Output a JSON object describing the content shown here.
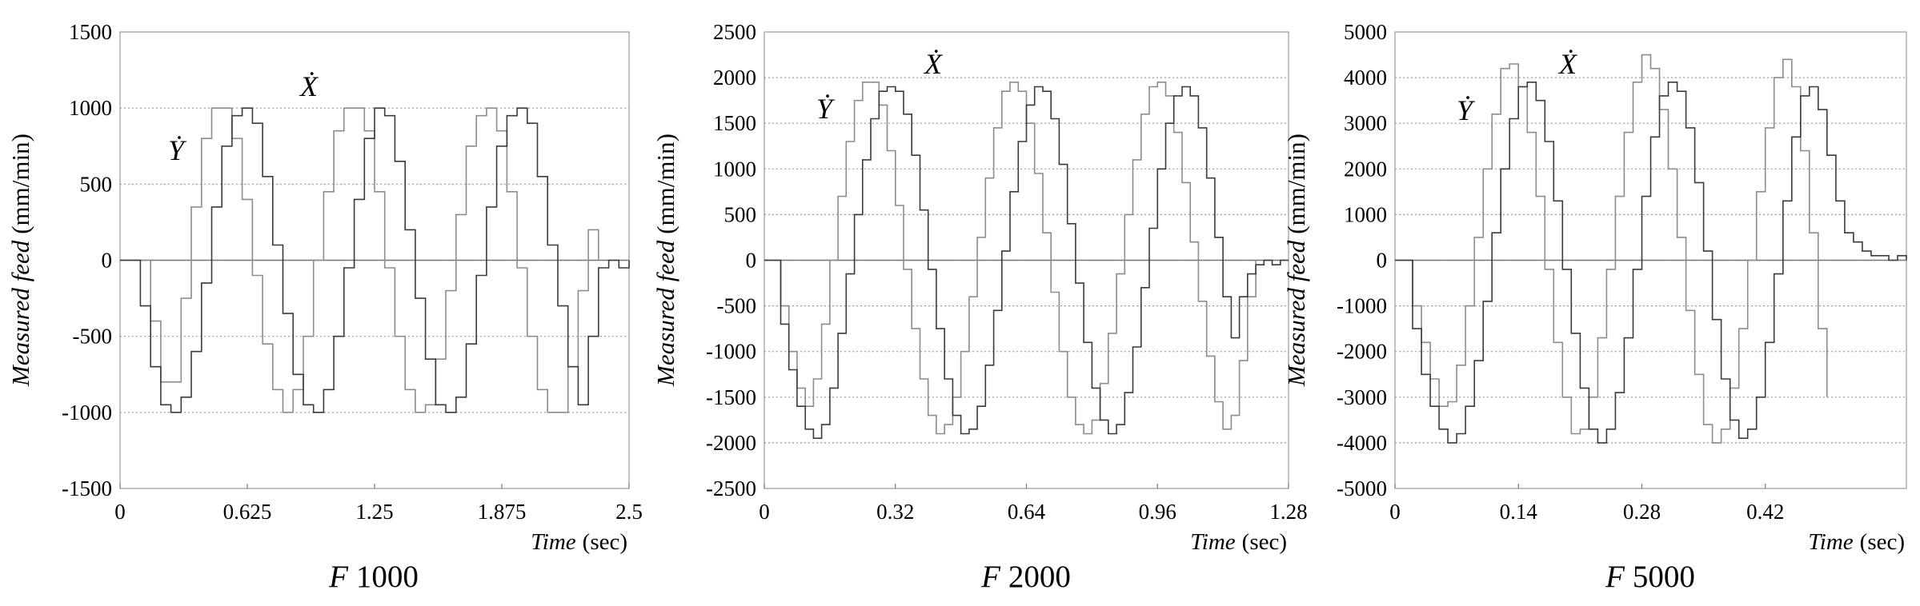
{
  "chart_data": [
    {
      "type": "line",
      "caption_prefix": "F",
      "caption_value": "1000",
      "ylabel_italic": "Measured feed",
      "ylabel_unit": "(mm/min)",
      "xlabel_italic": "Time",
      "xlabel_unit": "(sec)",
      "xlim": [
        0,
        2.5
      ],
      "ylim": [
        -1500,
        1500
      ],
      "xticks": [
        0,
        0.625,
        1.25,
        1.875,
        2.5
      ],
      "xtick_labels": [
        "0",
        "0.625",
        "1.25",
        "1.875",
        "2.5"
      ],
      "yticks": [
        -1500,
        -1000,
        -500,
        0,
        500,
        1000,
        1500
      ],
      "ytick_labels": [
        "-1500",
        "-1000",
        "-500",
        "0",
        "500",
        "1000",
        "1500"
      ],
      "grid": "horizontal dotted",
      "series": [
        {
          "name": "Ẏ",
          "color": "#8c8c8c",
          "x": [
            0.0,
            0.1,
            0.15,
            0.2,
            0.25,
            0.3,
            0.35,
            0.4,
            0.45,
            0.5,
            0.55,
            0.6,
            0.65,
            0.7,
            0.75,
            0.8,
            0.85,
            0.9,
            0.95,
            1.0,
            1.05,
            1.1,
            1.15,
            1.2,
            1.25,
            1.3,
            1.35,
            1.4,
            1.45,
            1.5,
            1.55,
            1.6,
            1.65,
            1.7,
            1.75,
            1.8,
            1.85,
            1.9,
            1.95,
            2.0,
            2.05,
            2.1,
            2.15,
            2.2,
            2.25,
            2.3,
            2.35
          ],
          "y": [
            0,
            0,
            -400,
            -800,
            -800,
            -250,
            350,
            800,
            1000,
            1000,
            800,
            400,
            -100,
            -550,
            -850,
            -1000,
            -850,
            -500,
            0,
            450,
            850,
            1000,
            1000,
            850,
            450,
            -50,
            -500,
            -850,
            -1000,
            -950,
            -650,
            -200,
            300,
            750,
            950,
            1000,
            850,
            450,
            -50,
            -500,
            -850,
            -1000,
            -1000,
            -700,
            -200,
            200,
            0
          ]
        },
        {
          "name": "Ẋ",
          "color": "#3a3a3a",
          "x": [
            0.0,
            0.1,
            0.15,
            0.2,
            0.25,
            0.3,
            0.35,
            0.4,
            0.45,
            0.5,
            0.55,
            0.6,
            0.65,
            0.7,
            0.75,
            0.8,
            0.85,
            0.9,
            0.95,
            1.0,
            1.05,
            1.1,
            1.15,
            1.2,
            1.25,
            1.3,
            1.35,
            1.4,
            1.45,
            1.5,
            1.55,
            1.6,
            1.65,
            1.7,
            1.75,
            1.8,
            1.85,
            1.9,
            1.95,
            2.0,
            2.05,
            2.1,
            2.15,
            2.2,
            2.25,
            2.3,
            2.35,
            2.4,
            2.45,
            2.5
          ],
          "y": [
            0,
            -300,
            -700,
            -950,
            -1000,
            -900,
            -600,
            -150,
            350,
            750,
            950,
            1000,
            900,
            550,
            100,
            -350,
            -750,
            -950,
            -1000,
            -850,
            -500,
            -50,
            400,
            800,
            1000,
            950,
            650,
            200,
            -250,
            -650,
            -950,
            -1000,
            -900,
            -550,
            -100,
            350,
            750,
            950,
            1000,
            900,
            550,
            100,
            -300,
            -700,
            -950,
            -500,
            -50,
            0,
            -50,
            0
          ]
        }
      ],
      "annotations": [
        {
          "text": "Ẏ",
          "series": 0
        },
        {
          "text": "Ẋ",
          "series": 1
        }
      ]
    },
    {
      "type": "line",
      "caption_prefix": "F",
      "caption_value": "2000",
      "ylabel_italic": "Measured feed",
      "ylabel_unit": "(mm/min)",
      "xlabel_italic": "Time",
      "xlabel_unit": "(sec)",
      "xlim": [
        0,
        1.28
      ],
      "ylim": [
        -2500,
        2500
      ],
      "xticks": [
        0,
        0.32,
        0.64,
        0.96,
        1.28
      ],
      "xtick_labels": [
        "0",
        "0.32",
        "0.64",
        "0.96",
        "1.28"
      ],
      "yticks": [
        -2500,
        -2000,
        -1500,
        -1000,
        -500,
        0,
        500,
        1000,
        1500,
        2000,
        2500
      ],
      "ytick_labels": [
        "-2500",
        "-2000",
        "-1500",
        "-1000",
        "-500",
        "0",
        "500",
        "1000",
        "1500",
        "2000",
        "2500"
      ],
      "grid": "horizontal dotted",
      "series": [
        {
          "name": "Ẏ",
          "color": "#8c8c8c",
          "x": [
            0.0,
            0.04,
            0.06,
            0.08,
            0.1,
            0.12,
            0.14,
            0.16,
            0.18,
            0.2,
            0.22,
            0.24,
            0.26,
            0.28,
            0.3,
            0.32,
            0.34,
            0.36,
            0.38,
            0.4,
            0.42,
            0.44,
            0.46,
            0.48,
            0.5,
            0.52,
            0.54,
            0.56,
            0.58,
            0.6,
            0.62,
            0.64,
            0.66,
            0.68,
            0.7,
            0.72,
            0.74,
            0.76,
            0.78,
            0.8,
            0.82,
            0.84,
            0.86,
            0.88,
            0.9,
            0.92,
            0.94,
            0.96,
            0.98,
            1.0,
            1.02,
            1.04,
            1.06,
            1.08,
            1.1,
            1.12,
            1.14,
            1.16,
            1.18,
            1.2
          ],
          "y": [
            0,
            -500,
            -1000,
            -1400,
            -1600,
            -1300,
            -700,
            0,
            700,
            1300,
            1750,
            1950,
            1950,
            1700,
            1200,
            600,
            -100,
            -750,
            -1300,
            -1700,
            -1900,
            -1800,
            -1500,
            -1000,
            -400,
            250,
            900,
            1450,
            1850,
            1950,
            1850,
            1500,
            950,
            300,
            -350,
            -1000,
            -1500,
            -1800,
            -1900,
            -1750,
            -1350,
            -800,
            -150,
            500,
            1100,
            1600,
            1900,
            1950,
            1800,
            1400,
            850,
            200,
            -450,
            -1050,
            -1550,
            -1850,
            -1700,
            -1100,
            -400,
            0
          ]
        },
        {
          "name": "Ẋ",
          "color": "#3a3a3a",
          "x": [
            0.0,
            0.04,
            0.06,
            0.08,
            0.1,
            0.12,
            0.14,
            0.16,
            0.18,
            0.2,
            0.22,
            0.24,
            0.26,
            0.28,
            0.3,
            0.32,
            0.34,
            0.36,
            0.38,
            0.4,
            0.42,
            0.44,
            0.46,
            0.48,
            0.5,
            0.52,
            0.54,
            0.56,
            0.58,
            0.6,
            0.62,
            0.64,
            0.66,
            0.68,
            0.7,
            0.72,
            0.74,
            0.76,
            0.78,
            0.8,
            0.82,
            0.84,
            0.86,
            0.88,
            0.9,
            0.92,
            0.94,
            0.96,
            0.98,
            1.0,
            1.02,
            1.04,
            1.06,
            1.08,
            1.1,
            1.12,
            1.14,
            1.16,
            1.18,
            1.2,
            1.22,
            1.24,
            1.26,
            1.28
          ],
          "y": [
            0,
            -700,
            -1200,
            -1600,
            -1850,
            -1950,
            -1800,
            -1400,
            -800,
            -150,
            500,
            1100,
            1550,
            1850,
            1900,
            1850,
            1600,
            1150,
            550,
            -100,
            -750,
            -1300,
            -1700,
            -1900,
            -1850,
            -1600,
            -1150,
            -550,
            100,
            750,
            1300,
            1700,
            1900,
            1850,
            1550,
            1050,
            400,
            -250,
            -900,
            -1400,
            -1750,
            -1900,
            -1800,
            -1450,
            -950,
            -300,
            350,
            1000,
            1500,
            1800,
            1900,
            1800,
            1450,
            900,
            250,
            -400,
            -850,
            -400,
            -150,
            -50,
            0,
            -50,
            0,
            0
          ]
        }
      ],
      "annotations": [
        {
          "text": "Ẏ",
          "series": 0
        },
        {
          "text": "Ẋ",
          "series": 1
        }
      ]
    },
    {
      "type": "line",
      "caption_prefix": "F",
      "caption_value": "5000",
      "ylabel_italic": "Measured feed",
      "ylabel_unit": "(mm/min)",
      "xlabel_italic": "Time",
      "xlabel_unit": "(sec)",
      "xlim": [
        0,
        0.58
      ],
      "ylim": [
        -5000,
        5000
      ],
      "xticks": [
        0,
        0.14,
        0.28,
        0.42
      ],
      "xtick_labels": [
        "0",
        "0.14",
        "0.28",
        "0.42"
      ],
      "yticks": [
        -5000,
        -4000,
        -3000,
        -2000,
        -1000,
        0,
        1000,
        2000,
        3000,
        4000,
        5000
      ],
      "ytick_labels": [
        "-5000",
        "-4000",
        "-3000",
        "-2000",
        "-1000",
        "0",
        "1000",
        "2000",
        "3000",
        "4000",
        "5000"
      ],
      "grid": "horizontal dotted",
      "series": [
        {
          "name": "Ẏ",
          "color": "#8c8c8c",
          "x": [
            0.0,
            0.02,
            0.03,
            0.04,
            0.05,
            0.06,
            0.07,
            0.08,
            0.09,
            0.1,
            0.11,
            0.12,
            0.13,
            0.14,
            0.15,
            0.16,
            0.17,
            0.18,
            0.19,
            0.2,
            0.21,
            0.22,
            0.23,
            0.24,
            0.25,
            0.26,
            0.27,
            0.28,
            0.29,
            0.3,
            0.31,
            0.32,
            0.33,
            0.34,
            0.35,
            0.36,
            0.37,
            0.38,
            0.39,
            0.4,
            0.41,
            0.42,
            0.43,
            0.44,
            0.45,
            0.46,
            0.47,
            0.48,
            0.49
          ],
          "y": [
            0,
            -1000,
            -1800,
            -2600,
            -3200,
            -3100,
            -2300,
            -1000,
            500,
            2000,
            3200,
            4200,
            4300,
            3800,
            2800,
            1400,
            -200,
            -1800,
            -3000,
            -3800,
            -3700,
            -3000,
            -1700,
            -200,
            1400,
            2800,
            3900,
            4500,
            4200,
            3300,
            2000,
            500,
            -1100,
            -2500,
            -3600,
            -4000,
            -3700,
            -2800,
            -1500,
            0,
            1500,
            2900,
            4000,
            4400,
            3800,
            2400,
            600,
            -1500,
            -3000
          ]
        },
        {
          "name": "Ẋ",
          "color": "#3a3a3a",
          "x": [
            0.0,
            0.02,
            0.03,
            0.04,
            0.05,
            0.06,
            0.07,
            0.08,
            0.09,
            0.1,
            0.11,
            0.12,
            0.13,
            0.14,
            0.15,
            0.16,
            0.17,
            0.18,
            0.19,
            0.2,
            0.21,
            0.22,
            0.23,
            0.24,
            0.25,
            0.26,
            0.27,
            0.28,
            0.29,
            0.3,
            0.31,
            0.32,
            0.33,
            0.34,
            0.35,
            0.36,
            0.37,
            0.38,
            0.39,
            0.4,
            0.41,
            0.42,
            0.43,
            0.44,
            0.45,
            0.46,
            0.47,
            0.48,
            0.49,
            0.5,
            0.51,
            0.52,
            0.53,
            0.54,
            0.55,
            0.56,
            0.57,
            0.58
          ],
          "y": [
            0,
            -1500,
            -2500,
            -3200,
            -3700,
            -4000,
            -3800,
            -3200,
            -2200,
            -900,
            600,
            2000,
            3100,
            3800,
            3900,
            3500,
            2600,
            1300,
            -200,
            -1600,
            -2800,
            -3700,
            -4000,
            -3700,
            -2900,
            -1700,
            -200,
            1400,
            2700,
            3600,
            3900,
            3700,
            2900,
            1700,
            200,
            -1300,
            -2600,
            -3500,
            -3900,
            -3700,
            -3000,
            -1800,
            -300,
            1300,
            2700,
            3600,
            3800,
            3300,
            2300,
            1300,
            600,
            400,
            200,
            100,
            100,
            0,
            100,
            0
          ]
        }
      ],
      "annotations": [
        {
          "text": "Ẏ",
          "series": 0
        },
        {
          "text": "Ẋ",
          "series": 1
        }
      ]
    }
  ]
}
